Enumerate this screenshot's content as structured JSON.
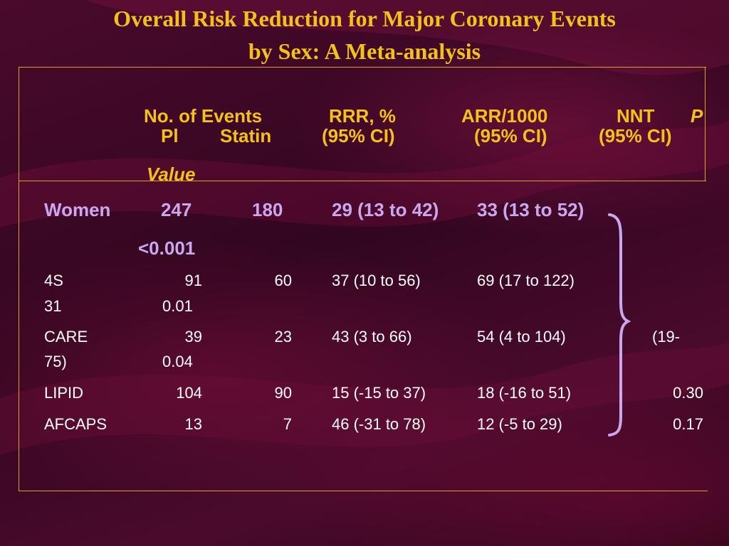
{
  "title": {
    "line1": "Overall Risk Reduction for Major Coronary Events",
    "line2": "by Sex: A Meta-analysis"
  },
  "header": {
    "no_events": "No. of Events",
    "rrr": "RRR, %",
    "arr": "ARR/1000",
    "nnt": "NNT",
    "p": "P",
    "pl": "Pl",
    "statin": "Statin",
    "ci_rrr": "(95% CI)",
    "ci_arr": "(95% CI)",
    "ci_nnt": "(95% CI)",
    "value": "Value"
  },
  "women": {
    "label": "Women",
    "pl": "247",
    "statin": "180",
    "rrr": "29 (13 to 42)",
    "arr": "33 (13 to 52)",
    "p": "<0.001"
  },
  "rows": [
    {
      "name": "4S",
      "pl": "91",
      "statin": "60",
      "rrr": "37 (10 to 56)",
      "arr": "69 (17 to 122)",
      "nnt": "31",
      "p": "0.01"
    },
    {
      "name": "CARE",
      "pl": "39",
      "statin": "23",
      "rrr": "43 (3 to 66)",
      "arr": "54 (4 to 104)",
      "nnt_a": "(19-",
      "nnt_b": "75)",
      "p": "0.04"
    },
    {
      "name": "LIPID",
      "pl": "104",
      "statin": "90",
      "rrr": "15 (-15 to 37)",
      "arr": "18 (-16 to 51)",
      "p": "0.30"
    },
    {
      "name": "AFCAPS",
      "pl": "13",
      "statin": "7",
      "rrr": "46 (-31 to 78)",
      "arr": "12 (-5 to 29)",
      "p": "0.17"
    }
  ],
  "colors": {
    "title": "#f2c21b",
    "header": "#f2c21b",
    "women": "#c9a8f0",
    "brace": "#c9a8f0",
    "body_text": "#ffffff",
    "background": "#3a0822"
  }
}
